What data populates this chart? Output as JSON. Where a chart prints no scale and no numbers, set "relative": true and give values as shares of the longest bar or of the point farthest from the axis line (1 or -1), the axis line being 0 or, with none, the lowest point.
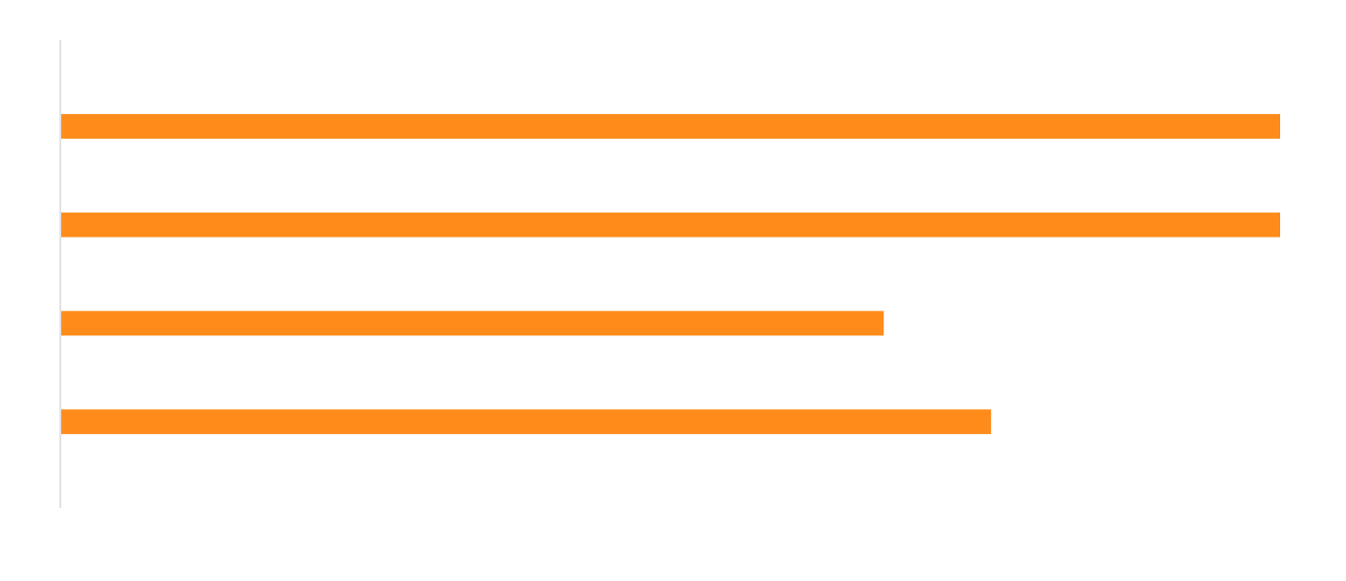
{
  "chart_data": {
    "type": "bar",
    "orientation": "horizontal",
    "relative": true,
    "categories": [
      null,
      null,
      null,
      null
    ],
    "series": [
      {
        "color": "#ff8c1a",
        "values": [
          1,
          1,
          0.675,
          0.763
        ]
      }
    ]
  }
}
